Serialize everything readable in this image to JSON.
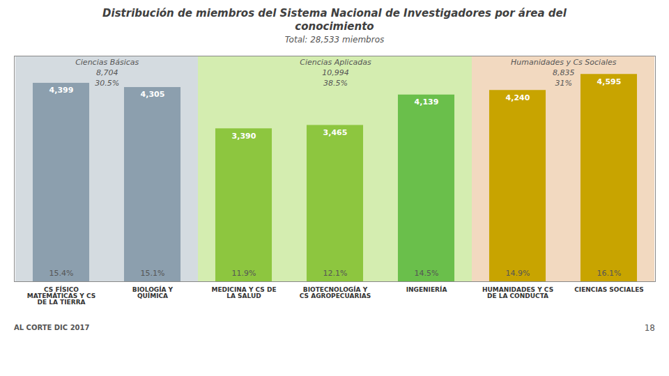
{
  "chart_data": {
    "type": "bar",
    "title": "Distribución de miembros del Sistema Nacional de Investigadores por área del\nconocimiento",
    "subtitle": "Total: 28,533 miembros",
    "categories": [
      "CS FÍSICO\nMATEMÁTICAS Y CS\nDE LA TIERRA",
      "BIOLOGÍA Y\nQUÍMICA",
      "MEDICINA Y CS DE\nLA SALUD",
      "BIOTECNOLOGÍA Y\nCS AGROPECUARIAS",
      "INGENIERÍA",
      "HUMANIDADES Y CS\nDE LA CONDUCTA",
      "CIENCIAS SOCIALES"
    ],
    "values": [
      4399,
      4305,
      3390,
      3465,
      4139,
      4240,
      4595
    ],
    "colors": [
      "#8c9fae",
      "#8c9fae",
      "#8dc63f",
      "#8dc63f",
      "#6abf4b",
      "#c8a400",
      "#c8a400"
    ],
    "data_labels": true,
    "value_labels": [
      "4,399",
      "4,305",
      "3,390",
      "3,465",
      "4,139",
      "4,240",
      "4,595"
    ],
    "percentages": [
      "15.4%",
      "15.1%",
      "11.9%",
      "12.1%",
      "14.5%",
      "14.9%",
      "16.1%"
    ],
    "groups": [
      {
        "name": "Ciencias Básicas",
        "total": "8,704",
        "share": "30.5%",
        "span": [
          0,
          1
        ],
        "color": "#d4dbe0"
      },
      {
        "name": "Ciencias Aplicadas",
        "total": "10,994",
        "share": "38.5%",
        "span": [
          2,
          4
        ],
        "color": "#d4edb0"
      },
      {
        "name": "Humanidades y Cs Sociales",
        "total": "8,835",
        "share": "31%",
        "span": [
          5,
          6
        ],
        "color": "#f2d9c0"
      }
    ],
    "ylim": [
      0,
      5000
    ],
    "tick_labels": "x",
    "footer": "AL CORTE DIC 2017",
    "page_number": "18"
  }
}
